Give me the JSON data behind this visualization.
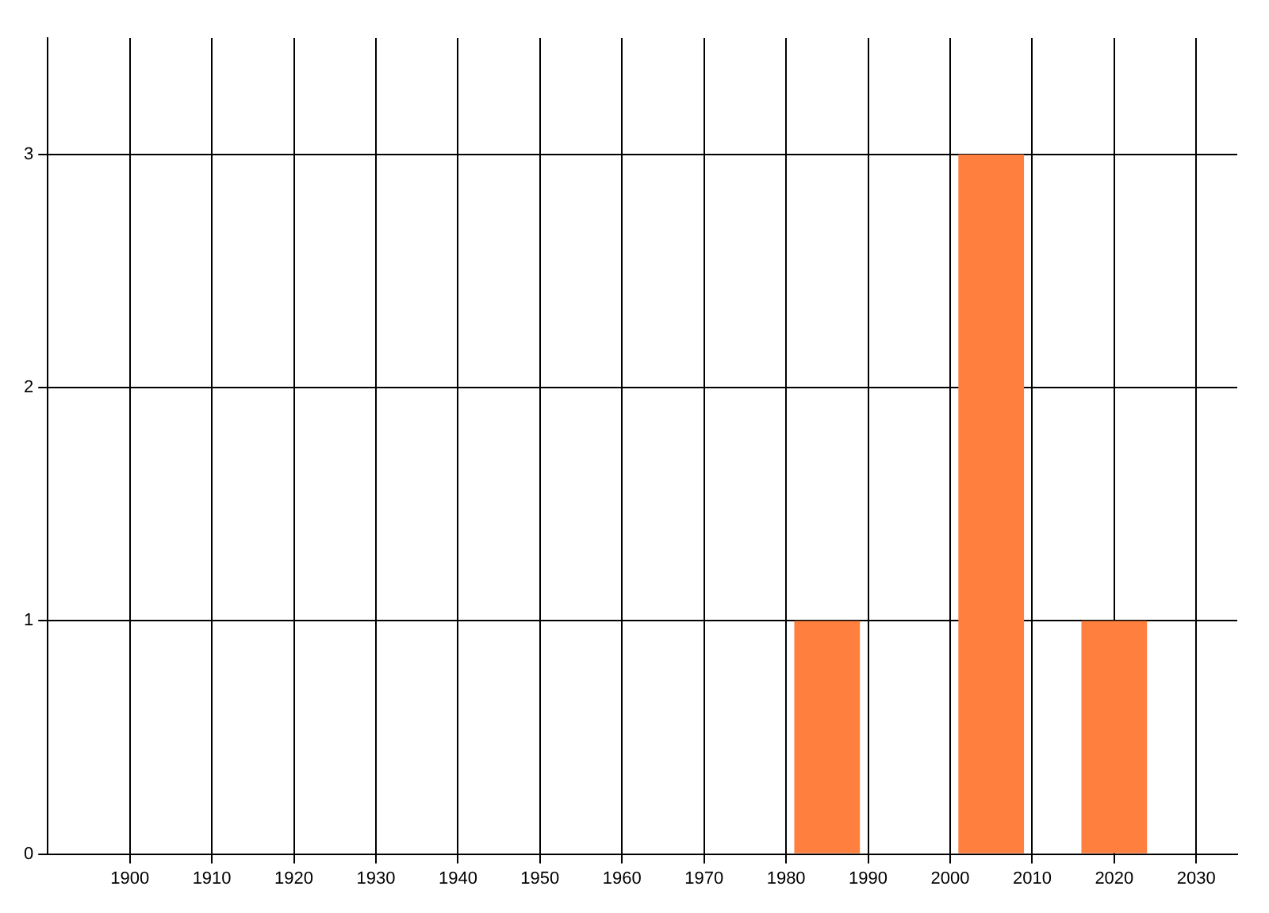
{
  "chart_data": {
    "type": "bar",
    "x": [
      1985,
      2005,
      2020
    ],
    "series": [
      {
        "color": "#ff7f3f",
        "values": [
          1,
          3,
          1
        ]
      }
    ],
    "xlim": [
      1890,
      2035
    ],
    "xticks": [
      1900,
      1910,
      1920,
      1930,
      1940,
      1950,
      1960,
      1970,
      1980,
      1990,
      2000,
      2010,
      2020,
      2030
    ],
    "ylim": [
      0,
      3.5
    ],
    "yticks": [
      0,
      1,
      2,
      3
    ],
    "grid": true,
    "legend": false
  }
}
